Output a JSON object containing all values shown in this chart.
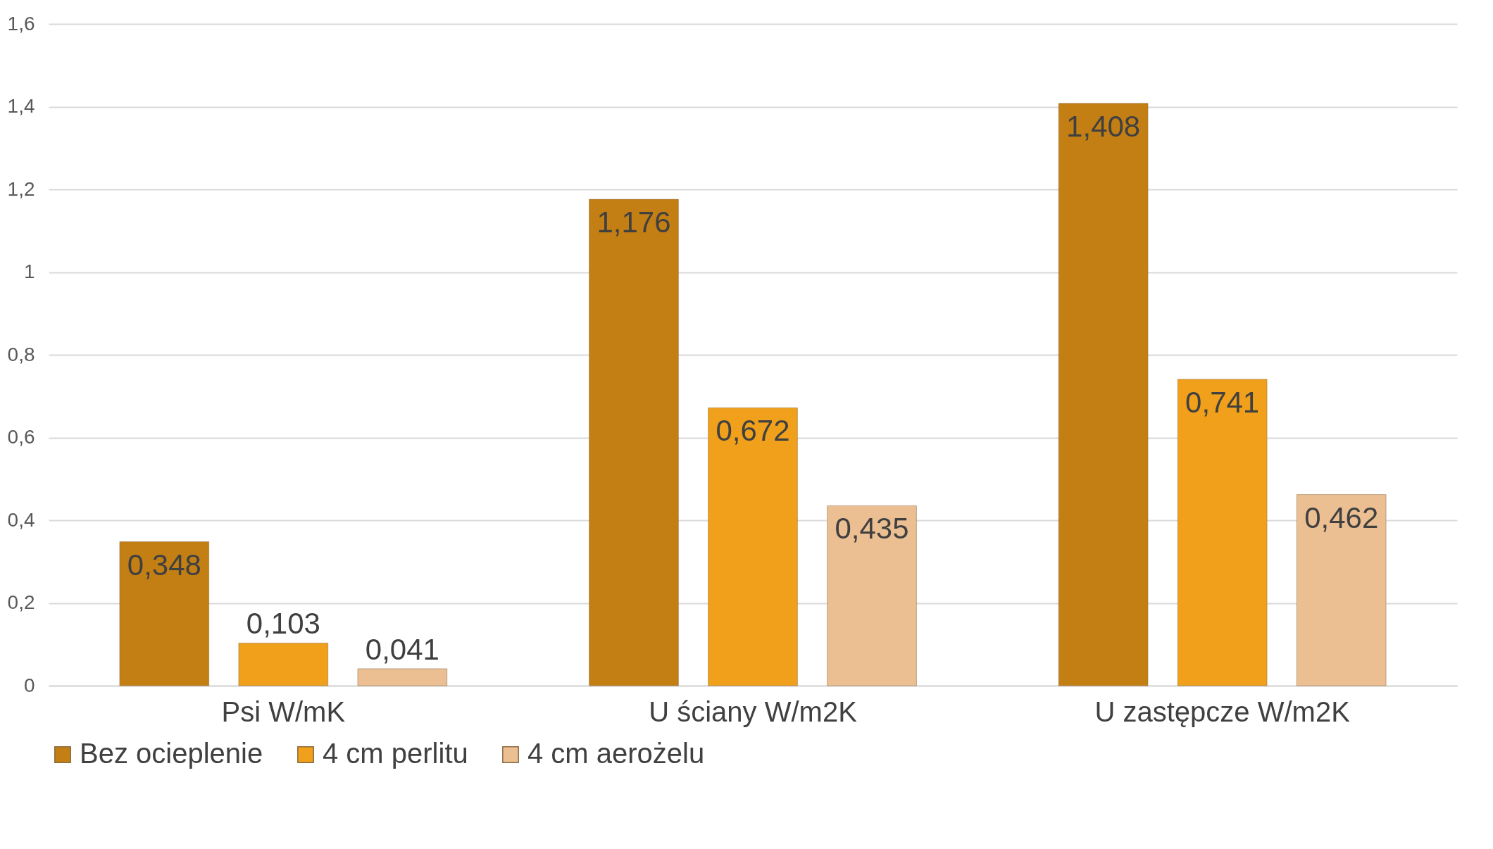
{
  "chart_data": {
    "type": "bar",
    "categories": [
      "Psi W/mK",
      "U ściany W/m2K",
      "U zastępcze W/m2K"
    ],
    "series": [
      {
        "name": "Bez ocieplenie",
        "color": "#c47f14",
        "values": [
          0.348,
          1.176,
          1.408
        ],
        "value_labels": [
          "0,348",
          "1,176",
          "1,408"
        ]
      },
      {
        "name": "4 cm perlitu",
        "color": "#f0a01a",
        "values": [
          0.103,
          0.672,
          0.741
        ],
        "value_labels": [
          "0,103",
          "0,672",
          "0,741"
        ]
      },
      {
        "name": "4 cm aerożelu",
        "color": "#ecbf93",
        "values": [
          0.041,
          0.435,
          0.462
        ],
        "value_labels": [
          "0,041",
          "0,435",
          "0,462"
        ]
      }
    ],
    "ylim": [
      0,
      1.6
    ],
    "yticks": [
      0,
      {
        "value": 0.2,
        "label": "0,2"
      },
      {
        "value": 0.4,
        "label": "0,4"
      },
      {
        "value": 0.6,
        "label": "0,6"
      },
      {
        "value": 0.8,
        "label": "0,8"
      },
      1,
      {
        "value": 1.2,
        "label": "1,2"
      },
      {
        "value": 1.4,
        "label": "1,4"
      },
      {
        "value": 1.6,
        "label": "1,6"
      }
    ],
    "grid": "y",
    "legend": "bottom"
  }
}
